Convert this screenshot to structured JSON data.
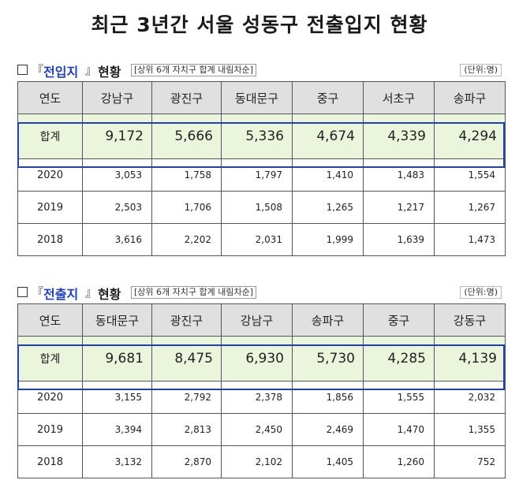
{
  "title": "최근 3년간 서울 성동구 전출입지 현황",
  "tables": [
    {
      "bracket_open": "『",
      "name": "전입지",
      "bracket_close": "』",
      "suffix": "현황",
      "note": "[상위 6개 자치구 합계 내림차순]",
      "unit": "(단위:명)",
      "year_col": "연도",
      "districts": [
        "강남구",
        "광진구",
        "동대문구",
        "중구",
        "서초구",
        "송파구"
      ],
      "total_label": "합계",
      "totals": [
        "9,172",
        "5,666",
        "5,336",
        "4,674",
        "4,339",
        "4,294"
      ],
      "rows": [
        {
          "year": "2020",
          "values": [
            "3,053",
            "1,758",
            "1,797",
            "1,410",
            "1,483",
            "1,554"
          ]
        },
        {
          "year": "2019",
          "values": [
            "2,503",
            "1,706",
            "1,508",
            "1,265",
            "1,217",
            "1,267"
          ]
        },
        {
          "year": "2018",
          "values": [
            "3,616",
            "2,202",
            "2,031",
            "1,999",
            "1,639",
            "1,473"
          ]
        }
      ]
    },
    {
      "bracket_open": "『",
      "name": "전출지",
      "bracket_close": "』",
      "suffix": "현황",
      "note": "[상위 6개 자치구 합계 내림차순]",
      "unit": "(단위:명)",
      "year_col": "연도",
      "districts": [
        "동대문구",
        "광진구",
        "강남구",
        "송파구",
        "중구",
        "강동구"
      ],
      "total_label": "합계",
      "totals": [
        "9,681",
        "8,475",
        "6,930",
        "5,730",
        "4,285",
        "4,139"
      ],
      "rows": [
        {
          "year": "2020",
          "values": [
            "3,155",
            "2,792",
            "2,378",
            "1,856",
            "1,555",
            "2,032"
          ]
        },
        {
          "year": "2019",
          "values": [
            "3,394",
            "2,813",
            "2,450",
            "2,469",
            "1,470",
            "1,355"
          ]
        },
        {
          "year": "2018",
          "values": [
            "3,132",
            "2,870",
            "2,102",
            "1,405",
            "1,260",
            "752"
          ]
        }
      ]
    }
  ]
}
